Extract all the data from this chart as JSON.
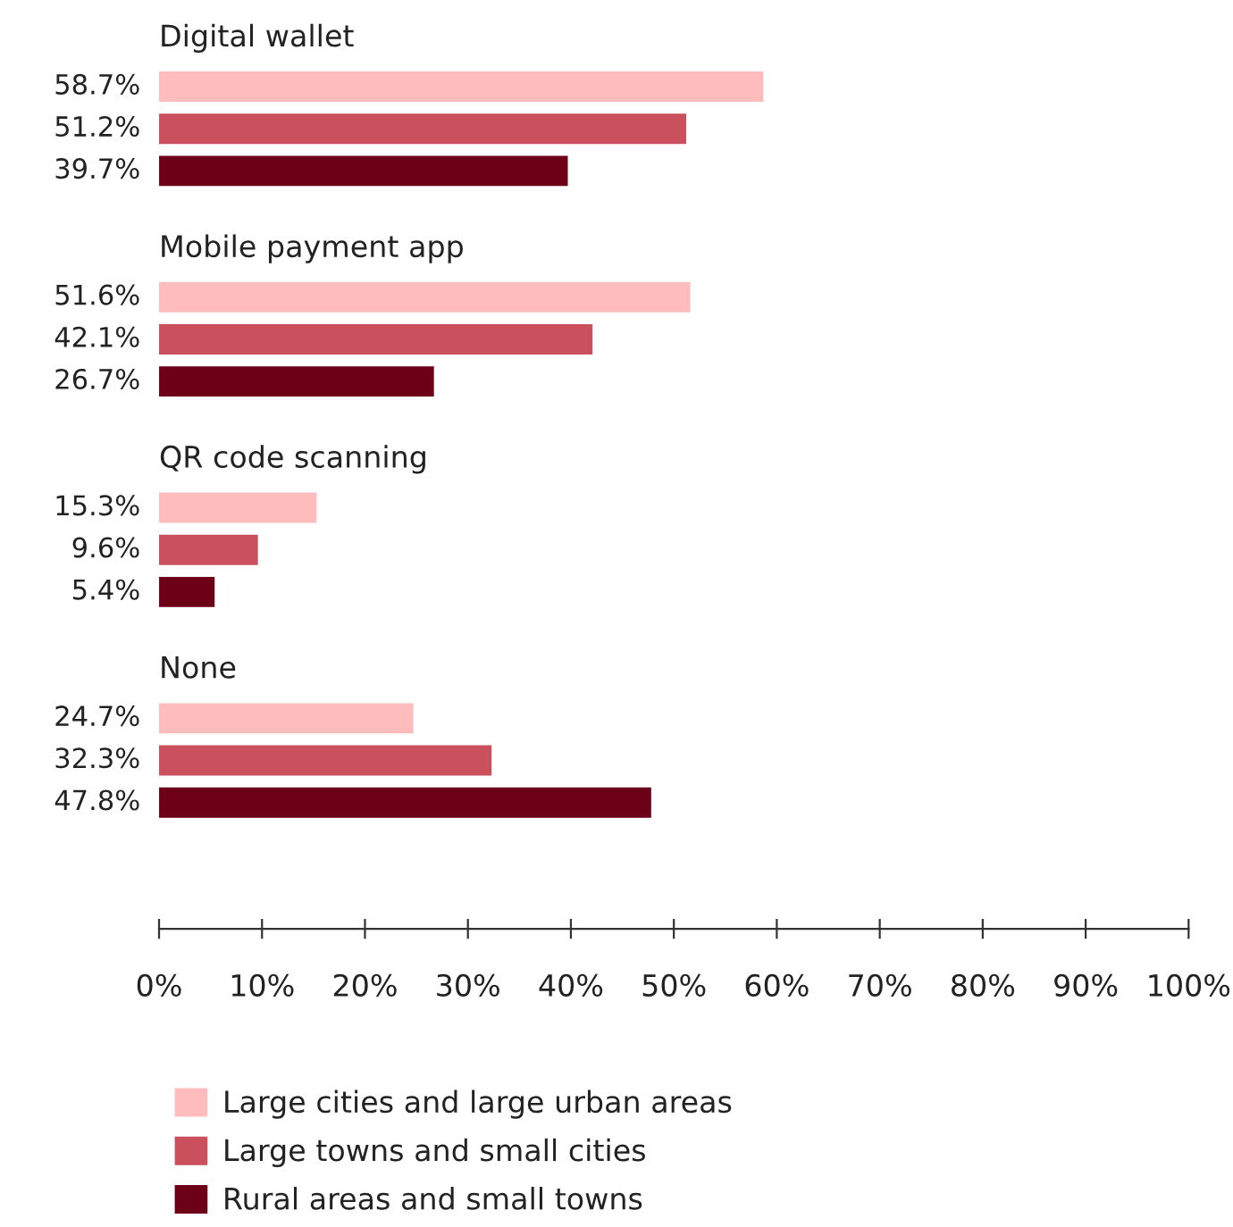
{
  "chart_data": {
    "type": "bar",
    "orientation": "horizontal",
    "categories": [
      "Digital wallet",
      "Mobile payment app",
      "QR code scanning",
      "None"
    ],
    "series": [
      {
        "name": "Large cities and large urban areas",
        "color": "#ffbcbc",
        "values": [
          58.7,
          51.6,
          15.3,
          24.7
        ],
        "value_labels": [
          "58.7%",
          "51.6%",
          "15.3%",
          "24.7%"
        ]
      },
      {
        "name": "Large towns and small cities",
        "color": "#c9505c",
        "values": [
          51.2,
          42.1,
          9.6,
          32.3
        ],
        "value_labels": [
          "51.2%",
          "42.1%",
          "9.6%",
          "32.3%"
        ]
      },
      {
        "name": "Rural areas and small towns",
        "color": "#6b0017",
        "values": [
          39.7,
          26.7,
          5.4,
          47.8
        ],
        "value_labels": [
          "39.7%",
          "26.7%",
          "5.4%",
          "47.8%"
        ]
      }
    ],
    "xlim": [
      0,
      100
    ],
    "xticks": [
      {
        "value": 0,
        "label": "0%"
      },
      {
        "value": 10,
        "label": "10%"
      },
      {
        "value": 20,
        "label": "20%"
      },
      {
        "value": 30,
        "label": "30%"
      },
      {
        "value": 40,
        "label": "40%"
      },
      {
        "value": 50,
        "label": "50%"
      },
      {
        "value": 60,
        "label": "60%"
      },
      {
        "value": 70,
        "label": "70%"
      },
      {
        "value": 80,
        "label": "80%"
      },
      {
        "value": 90,
        "label": "90%"
      },
      {
        "value": 100,
        "label": "100%"
      }
    ],
    "grid": false,
    "legend": "bottom"
  }
}
